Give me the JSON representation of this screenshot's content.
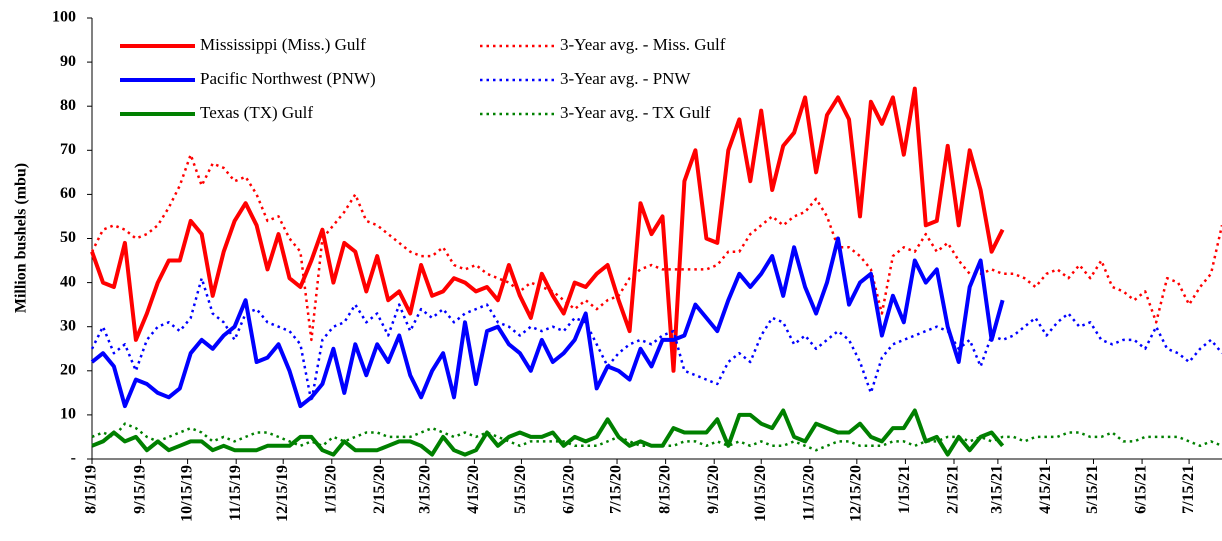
{
  "chart_data": {
    "type": "line",
    "y_label": "Million bushels (mbu)",
    "x": [
      "2019-08-15",
      "2019-08-22",
      "2019-08-29",
      "2019-09-05",
      "2019-09-12",
      "2019-09-19",
      "2019-09-26",
      "2019-10-03",
      "2019-10-10",
      "2019-10-17",
      "2019-10-24",
      "2019-10-31",
      "2019-11-07",
      "2019-11-14",
      "2019-11-21",
      "2019-11-28",
      "2019-12-05",
      "2019-12-12",
      "2019-12-19",
      "2019-12-26",
      "2020-01-02",
      "2020-01-09",
      "2020-01-16",
      "2020-01-23",
      "2020-01-30",
      "2020-02-06",
      "2020-02-13",
      "2020-02-20",
      "2020-02-27",
      "2020-03-05",
      "2020-03-12",
      "2020-03-19",
      "2020-03-26",
      "2020-04-02",
      "2020-04-09",
      "2020-04-16",
      "2020-04-23",
      "2020-04-30",
      "2020-05-07",
      "2020-05-14",
      "2020-05-21",
      "2020-05-28",
      "2020-06-04",
      "2020-06-11",
      "2020-06-18",
      "2020-06-25",
      "2020-07-02",
      "2020-07-09",
      "2020-07-16",
      "2020-07-23",
      "2020-07-30",
      "2020-08-06",
      "2020-08-13",
      "2020-08-20",
      "2020-08-27",
      "2020-09-03",
      "2020-09-10",
      "2020-09-17",
      "2020-09-24",
      "2020-10-01",
      "2020-10-08",
      "2020-10-15",
      "2020-10-22",
      "2020-10-29",
      "2020-11-05",
      "2020-11-12",
      "2020-11-19",
      "2020-11-26",
      "2020-12-03",
      "2020-12-10",
      "2020-12-17",
      "2020-12-24",
      "2020-12-31",
      "2021-01-07",
      "2021-01-14",
      "2021-01-21",
      "2021-01-28",
      "2021-02-04",
      "2021-02-11",
      "2021-02-18",
      "2021-02-25",
      "2021-03-04",
      "2021-03-11",
      "2021-03-18",
      "2021-03-25",
      "2021-04-01",
      "2021-04-08",
      "2021-04-15",
      "2021-04-22",
      "2021-04-29",
      "2021-05-06",
      "2021-05-13",
      "2021-05-20",
      "2021-05-27",
      "2021-06-03",
      "2021-06-10",
      "2021-06-17",
      "2021-06-24",
      "2021-07-01",
      "2021-07-08",
      "2021-07-15",
      "2021-07-22",
      "2021-07-29",
      "2021-08-05"
    ],
    "xlim": [
      "2019-08-15",
      "2021-08-05"
    ],
    "xticks": [
      {
        "value": "2019-08-15",
        "label": "8/15/19"
      },
      {
        "value": "2019-09-15",
        "label": "9/15/19"
      },
      {
        "value": "2019-10-15",
        "label": "10/15/19"
      },
      {
        "value": "2019-11-15",
        "label": "11/15/19"
      },
      {
        "value": "2019-12-15",
        "label": "12/15/19"
      },
      {
        "value": "2020-01-15",
        "label": "1/15/20"
      },
      {
        "value": "2020-02-15",
        "label": "2/15/20"
      },
      {
        "value": "2020-03-15",
        "label": "3/15/20"
      },
      {
        "value": "2020-04-15",
        "label": "4/15/20"
      },
      {
        "value": "2020-05-15",
        "label": "5/15/20"
      },
      {
        "value": "2020-06-15",
        "label": "6/15/20"
      },
      {
        "value": "2020-07-15",
        "label": "7/15/20"
      },
      {
        "value": "2020-08-15",
        "label": "8/15/20"
      },
      {
        "value": "2020-09-15",
        "label": "9/15/20"
      },
      {
        "value": "2020-10-15",
        "label": "10/15/20"
      },
      {
        "value": "2020-11-15",
        "label": "11/15/20"
      },
      {
        "value": "2020-12-15",
        "label": "12/15/20"
      },
      {
        "value": "2021-01-15",
        "label": "1/15/21"
      },
      {
        "value": "2021-02-15",
        "label": "2/15/21"
      },
      {
        "value": "2021-03-15",
        "label": "3/15/21"
      },
      {
        "value": "2021-04-15",
        "label": "4/15/21"
      },
      {
        "value": "2021-05-15",
        "label": "5/15/21"
      },
      {
        "value": "2021-06-15",
        "label": "6/15/21"
      },
      {
        "value": "2021-07-15",
        "label": "7/15/21"
      }
    ],
    "ylim": [
      0,
      100
    ],
    "yticks": [
      {
        "value": 0,
        "label": "-"
      },
      10,
      20,
      30,
      40,
      50,
      60,
      70,
      80,
      90,
      100
    ],
    "grid": false,
    "legend": "upper left",
    "series": [
      {
        "name": "Mississippi (Miss.) Gulf",
        "color": "#ff0000",
        "style": "solid",
        "values": [
          47,
          40,
          39,
          49,
          27,
          33,
          40,
          45,
          45,
          54,
          51,
          37,
          47,
          54,
          58,
          53,
          43,
          51,
          41,
          39,
          45,
          52,
          40,
          49,
          47,
          38,
          46,
          36,
          38,
          33,
          44,
          37,
          38,
          41,
          40,
          38,
          39,
          36,
          44,
          37,
          32,
          42,
          37,
          33,
          40,
          39,
          42,
          44,
          36,
          29,
          58,
          51,
          55,
          20,
          63,
          70,
          50,
          49,
          70,
          77,
          63,
          79,
          61,
          71,
          74,
          82,
          65,
          78,
          82,
          77,
          55,
          81,
          76,
          82,
          69,
          84,
          53,
          54,
          71,
          53,
          70,
          61,
          47,
          52,
          null,
          null,
          null,
          null,
          null,
          null,
          null,
          null,
          null,
          null,
          null,
          null,
          null,
          null,
          null,
          null,
          null,
          null,
          null,
          null
        ]
      },
      {
        "name": "3-Year avg. - Miss. Gulf",
        "color": "#ff0000",
        "style": "dotted",
        "values": [
          47,
          52,
          53,
          52,
          50,
          51,
          53,
          57,
          62,
          69,
          62,
          67,
          66,
          63,
          64,
          60,
          54,
          55,
          50,
          47,
          27,
          50,
          53,
          56,
          60,
          54,
          53,
          51,
          49,
          47,
          46,
          46,
          48,
          44,
          43,
          44,
          42,
          41,
          40,
          38,
          40,
          39,
          38,
          36,
          34,
          36,
          34,
          36,
          37,
          41,
          43,
          44,
          43,
          43,
          43,
          43,
          43,
          44,
          47,
          47,
          51,
          53,
          55,
          53,
          55,
          56,
          59,
          55,
          48,
          48,
          46,
          43,
          33,
          46,
          48,
          47,
          51,
          47,
          49,
          45,
          42,
          42,
          43,
          42,
          42,
          41,
          39,
          42,
          43,
          41,
          44,
          41,
          45,
          39,
          38,
          36,
          38,
          31,
          41,
          40,
          35,
          39,
          42,
          53
        ]
      },
      {
        "name": "Pacific Northwest (PNW)",
        "color": "#0000ff",
        "style": "solid",
        "values": [
          22,
          24,
          21,
          12,
          18,
          17,
          15,
          14,
          16,
          24,
          27,
          25,
          28,
          30,
          36,
          22,
          23,
          26,
          20,
          12,
          14,
          17,
          25,
          15,
          26,
          19,
          26,
          22,
          28,
          19,
          14,
          20,
          24,
          14,
          31,
          17,
          29,
          30,
          26,
          24,
          20,
          27,
          22,
          24,
          27,
          33,
          16,
          21,
          20,
          18,
          25,
          21,
          27,
          27,
          28,
          35,
          32,
          29,
          36,
          42,
          39,
          42,
          46,
          37,
          48,
          39,
          33,
          40,
          50,
          35,
          40,
          42,
          28,
          37,
          31,
          45,
          40,
          43,
          30,
          22,
          39,
          45,
          27,
          36,
          null,
          null,
          null,
          null,
          null,
          null,
          null,
          null,
          null,
          null,
          null,
          null,
          null,
          null,
          null,
          null,
          null,
          null,
          null,
          null
        ]
      },
      {
        "name": "3-Year avg. - PNW",
        "color": "#0000ff",
        "style": "dotted",
        "values": [
          25,
          30,
          24,
          26,
          20,
          27,
          30,
          31,
          29,
          32,
          41,
          33,
          31,
          27,
          33,
          34,
          31,
          30,
          29,
          26,
          13,
          27,
          30,
          31,
          35,
          31,
          33,
          28,
          35,
          29,
          34,
          32,
          34,
          31,
          33,
          34,
          35,
          31,
          30,
          28,
          30,
          29,
          30,
          29,
          32,
          31,
          26,
          21,
          24,
          26,
          27,
          26,
          28,
          29,
          20,
          19,
          18,
          17,
          22,
          24,
          22,
          28,
          32,
          31,
          26,
          28,
          25,
          27,
          29,
          27,
          22,
          15,
          23,
          26,
          27,
          28,
          29,
          30,
          29,
          25,
          27,
          21,
          28,
          27,
          28,
          30,
          32,
          28,
          31,
          33,
          30,
          31,
          27,
          26,
          27,
          27,
          25,
          30,
          25,
          24,
          22,
          25,
          27,
          24
        ]
      },
      {
        "name": "Texas (TX) Gulf",
        "color": "#008000",
        "style": "solid",
        "values": [
          3,
          4,
          6,
          4,
          5,
          2,
          4,
          2,
          3,
          4,
          4,
          2,
          3,
          2,
          2,
          2,
          3,
          3,
          3,
          5,
          5,
          2,
          1,
          4,
          2,
          2,
          2,
          3,
          4,
          4,
          3,
          1,
          5,
          2,
          1,
          2,
          6,
          3,
          5,
          6,
          5,
          5,
          6,
          3,
          5,
          4,
          5,
          9,
          5,
          3,
          4,
          3,
          3,
          7,
          6,
          6,
          6,
          9,
          3,
          10,
          10,
          8,
          7,
          11,
          5,
          4,
          8,
          7,
          6,
          6,
          8,
          5,
          4,
          7,
          7,
          11,
          4,
          5,
          1,
          5,
          2,
          5,
          6,
          3,
          null,
          null,
          null,
          null,
          null,
          null,
          null,
          null,
          null,
          null,
          null,
          null,
          null,
          null,
          null,
          null,
          null,
          null,
          null,
          null
        ]
      },
      {
        "name": "3-Year avg. - TX Gulf",
        "color": "#008000",
        "style": "dotted",
        "values": [
          5,
          6,
          5,
          8,
          7,
          5,
          4,
          5,
          6,
          7,
          6,
          4,
          5,
          4,
          5,
          6,
          6,
          5,
          4,
          3,
          4,
          3,
          5,
          4,
          5,
          6,
          6,
          5,
          5,
          5,
          6,
          7,
          6,
          5,
          6,
          5,
          6,
          5,
          4,
          3,
          4,
          4,
          4,
          4,
          3,
          3,
          3,
          4,
          5,
          4,
          3,
          3,
          3,
          3,
          4,
          4,
          3,
          4,
          3,
          4,
          3,
          4,
          3,
          3,
          4,
          3,
          2,
          3,
          4,
          4,
          3,
          3,
          3,
          4,
          4,
          3,
          4,
          4,
          5,
          5,
          4,
          5,
          4,
          5,
          5,
          4,
          5,
          5,
          5,
          6,
          6,
          5,
          5,
          6,
          4,
          4,
          5,
          5,
          5,
          5,
          4,
          3,
          4,
          3
        ]
      }
    ]
  }
}
